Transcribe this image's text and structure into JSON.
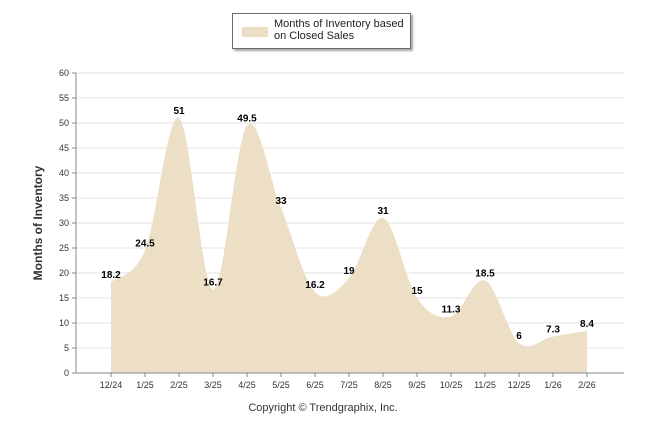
{
  "chart_data": {
    "type": "area",
    "title": "",
    "xlabel": "",
    "ylabel": "Months of Inventory",
    "ylim": [
      0,
      60
    ],
    "ytick_step": 5,
    "categories": [
      "12/24",
      "1/25",
      "2/25",
      "3/25",
      "4/25",
      "5/25",
      "6/25",
      "7/25",
      "8/25",
      "9/25",
      "10/25",
      "11/25",
      "12/25",
      "1/26",
      "2/26"
    ],
    "series": [
      {
        "name": "Months of Inventory based on Closed Sales",
        "values": [
          18.2,
          24.5,
          51,
          16.7,
          49.5,
          33,
          16.2,
          19,
          31,
          15,
          11.3,
          18.5,
          6,
          7.3,
          8.4
        ],
        "labels": [
          "18.2",
          "24.5",
          "51",
          "16.7",
          "49.5",
          "33",
          "16.2",
          "19",
          "31",
          "15",
          "11.3",
          "18.5",
          "6",
          "7.3",
          "8.4"
        ],
        "color": "#ecdfc5"
      }
    ],
    "legend": "top-center",
    "grid": true
  },
  "legend_label": "Months of Inventory based on Closed Sales",
  "copyright": "Copyright © Trendgraphix, Inc.",
  "colors": {
    "area": "#ecdfc5",
    "grid": "#e3e3e3",
    "axis": "#888888"
  }
}
